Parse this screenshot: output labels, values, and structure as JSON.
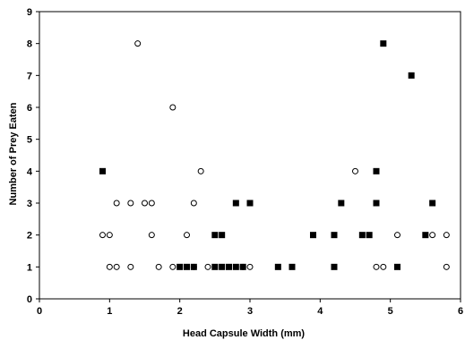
{
  "chart_data": {
    "type": "scatter",
    "xlabel": "Head Capsule Width (mm)",
    "ylabel": "Number of Prey Eaten",
    "xlim": [
      0,
      6
    ],
    "ylim": [
      0,
      9
    ],
    "xticks": [
      "0",
      "1",
      "2",
      "3",
      "4",
      "5",
      "6"
    ],
    "yticks": [
      "0",
      "1",
      "2",
      "3",
      "4",
      "5",
      "6",
      "7",
      "8",
      "9"
    ],
    "grid": false,
    "series": [
      {
        "marker": "open-circle",
        "points": [
          [
            0.9,
            2
          ],
          [
            1.0,
            2
          ],
          [
            1.0,
            1
          ],
          [
            1.1,
            1
          ],
          [
            1.1,
            3
          ],
          [
            1.3,
            1
          ],
          [
            1.3,
            3
          ],
          [
            1.4,
            8
          ],
          [
            1.5,
            3
          ],
          [
            1.6,
            3
          ],
          [
            1.6,
            2
          ],
          [
            1.7,
            1
          ],
          [
            1.9,
            6
          ],
          [
            1.9,
            1
          ],
          [
            2.1,
            2
          ],
          [
            2.2,
            1
          ],
          [
            2.2,
            3
          ],
          [
            2.3,
            4
          ],
          [
            2.4,
            1
          ],
          [
            2.9,
            1
          ],
          [
            3.0,
            1
          ],
          [
            4.5,
            4
          ],
          [
            4.8,
            1
          ],
          [
            4.9,
            1
          ],
          [
            5.1,
            2
          ],
          [
            5.6,
            2
          ],
          [
            5.8,
            2
          ],
          [
            5.8,
            1
          ]
        ]
      },
      {
        "marker": "filled-square",
        "points": [
          [
            0.9,
            4
          ],
          [
            2.0,
            1
          ],
          [
            2.1,
            1
          ],
          [
            2.2,
            1
          ],
          [
            2.5,
            1
          ],
          [
            2.5,
            2
          ],
          [
            2.6,
            2
          ],
          [
            2.6,
            1
          ],
          [
            2.7,
            1
          ],
          [
            2.8,
            1
          ],
          [
            2.8,
            3
          ],
          [
            2.9,
            1
          ],
          [
            3.0,
            3
          ],
          [
            3.4,
            1
          ],
          [
            3.6,
            1
          ],
          [
            3.9,
            2
          ],
          [
            4.2,
            2
          ],
          [
            4.2,
            1
          ],
          [
            4.3,
            3
          ],
          [
            4.6,
            2
          ],
          [
            4.7,
            2
          ],
          [
            4.8,
            4
          ],
          [
            4.8,
            3
          ],
          [
            4.9,
            8
          ],
          [
            5.1,
            1
          ],
          [
            5.3,
            7
          ],
          [
            5.5,
            2
          ],
          [
            5.6,
            3
          ]
        ]
      }
    ]
  }
}
